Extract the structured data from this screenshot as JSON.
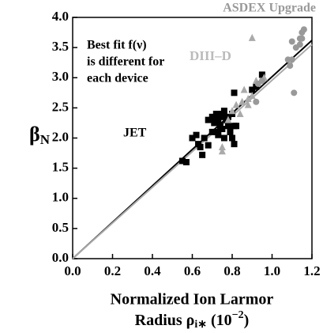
{
  "chart_data": {
    "type": "scatter",
    "xlabel_lines": [
      "Normalized Ion Larmor",
      "Radius ρ"
    ],
    "xlabel_sub": "i∗",
    "xlabel_unit": [
      "(10",
      "−2",
      ")"
    ],
    "ylabel": "β",
    "ylabel_sub": "N",
    "annotation_lines": [
      "Best fit f(ν)",
      "is different for",
      "each device"
    ],
    "xlim": [
      0,
      1.2
    ],
    "ylim": [
      0,
      4
    ],
    "xticks": [
      {
        "value": 0,
        "label": "0.0"
      },
      {
        "value": 0.2,
        "label": "0.2"
      },
      {
        "value": 0.4,
        "label": "0.4"
      },
      {
        "value": 0.6,
        "label": "0.6"
      },
      {
        "value": 0.8,
        "label": "0.8"
      },
      {
        "value": 1,
        "label": "1.0"
      },
      {
        "value": 1.2,
        "label": "1.2"
      }
    ],
    "yticks": [
      {
        "value": 0,
        "label": "0.0"
      },
      {
        "value": 0.5,
        "label": "0.5"
      },
      {
        "value": 1,
        "label": "1.0"
      },
      {
        "value": 1.5,
        "label": "1.5"
      },
      {
        "value": 2,
        "label": "2.0"
      },
      {
        "value": 2.5,
        "label": "2.5"
      },
      {
        "value": 3,
        "label": "3.0"
      },
      {
        "value": 3.5,
        "label": "3.5"
      },
      {
        "value": 4,
        "label": "4.0"
      }
    ],
    "series": [
      {
        "name": "JET",
        "color": "#000000",
        "marker": "square",
        "x": [
          0.55,
          0.57,
          0.6,
          0.62,
          0.63,
          0.64,
          0.65,
          0.66,
          0.68,
          0.68,
          0.7,
          0.71,
          0.72,
          0.72,
          0.73,
          0.73,
          0.74,
          0.75,
          0.75,
          0.76,
          0.76,
          0.77,
          0.78,
          0.79,
          0.8,
          0.8,
          0.81,
          0.82,
          0.81,
          0.81,
          0.78,
          0.9,
          0.92,
          0.95,
          0.74,
          0.7
        ],
        "values": [
          1.62,
          1.6,
          2.0,
          2.05,
          1.9,
          1.85,
          1.72,
          2.0,
          1.88,
          2.3,
          2.35,
          2.25,
          2.4,
          2.1,
          2.05,
          2.3,
          2.2,
          2.35,
          2.15,
          2.45,
          2.0,
          2.3,
          2.2,
          2.1,
          2.4,
          2.0,
          2.2,
          2.2,
          1.9,
          2.75,
          2.35,
          2.8,
          2.85,
          3.05,
          2.4,
          2.1
        ]
      },
      {
        "name": "DIII–D",
        "color": "#aaaaaa",
        "marker": "triangle",
        "x": [
          0.75,
          0.75,
          0.78,
          0.8,
          0.82,
          0.85,
          0.86,
          0.88,
          0.9,
          0.88,
          0.92,
          0.96,
          0.84,
          0.9
        ],
        "values": [
          1.85,
          1.78,
          2.3,
          2.45,
          2.55,
          2.6,
          2.8,
          2.55,
          2.7,
          2.65,
          2.95,
          3.0,
          2.4,
          3.66
        ]
      },
      {
        "name": "ASDEX Upgrade",
        "color": "#999999",
        "marker": "circle",
        "x": [
          0.92,
          0.93,
          0.95,
          1.09,
          1.1,
          1.1,
          1.12,
          1.11,
          1.14,
          1.15,
          1.16,
          1.14,
          1.08,
          1.15
        ],
        "values": [
          2.6,
          2.9,
          2.95,
          3.2,
          3.3,
          3.6,
          3.5,
          2.75,
          3.65,
          3.75,
          3.8,
          3.55,
          3.3,
          3.65
        ]
      }
    ],
    "lines": [
      {
        "color": "#000000",
        "x": [
          0,
          1.2
        ],
        "values": [
          0,
          3.62
        ]
      },
      {
        "color": "#aaaaaa",
        "x": [
          0,
          1.2
        ],
        "values": [
          0,
          3.55
        ]
      }
    ]
  }
}
